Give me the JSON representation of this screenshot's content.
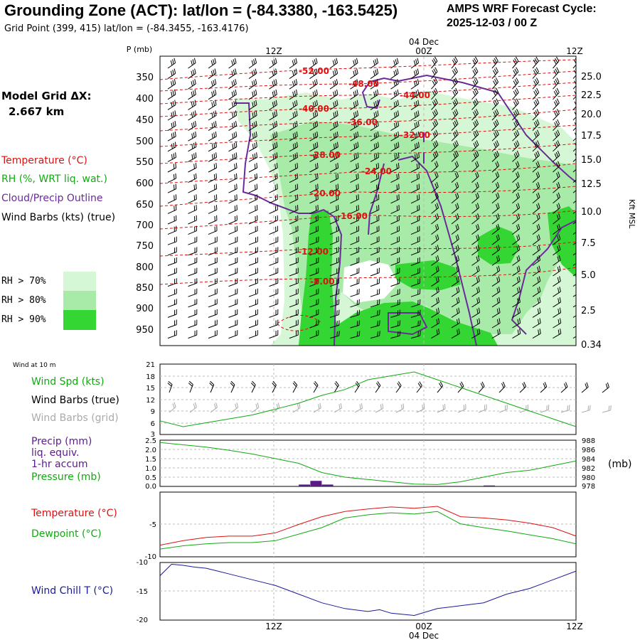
{
  "header": {
    "title": "Grounding Zone (ACT):  lat/lon = (-84.3380, -163.5425)",
    "grid_point": "Grid Point (399, 415) lat/lon = (-84.3455, -163.4176)",
    "cycle_line1": "AMPS WRF Forecast Cycle:",
    "cycle_line2": "2025-12-03 / 00  Z"
  },
  "time_axis": {
    "ticks": [
      "12Z",
      "00Z",
      "12Z"
    ],
    "date_label": "04 Dec"
  },
  "model_grid": {
    "line1": "Model Grid ΔX:",
    "line2": "2.667 km"
  },
  "colors": {
    "temperature": "#dd1111",
    "rh": "#11aa11",
    "cloud": "#6a2a9a",
    "wind": "#000000",
    "grid_wind": "#aaaaaa",
    "wind_chill": "#1a1a9a",
    "precip": "#5a1a8a",
    "rh70": "#d6f7d6",
    "rh80": "#a8eaa8",
    "rh90": "#33d633"
  },
  "legend": {
    "temperature": "Temperature (°C)",
    "rh": "RH (%, WRT liq. wat.)",
    "cloud": "Cloud/Precip Outline",
    "wind": "Wind Barbs (kts) (true)",
    "rh70": "RH > 70%",
    "rh80": "RH > 80%",
    "rh90": "RH > 90%"
  },
  "wind10": {
    "title": "Wind at 10 m",
    "spd": "Wind Spd (kts)",
    "barbs_true": "Wind Barbs (true)",
    "barbs_grid": "Wind Barbs (grid)"
  },
  "precip_panel": {
    "l1": "Precip (mm)",
    "l2": "liq. equiv.",
    "l3": "1-hr accum",
    "l4": "Pressure (mb)",
    "units": "(mb)"
  },
  "temp_panel": {
    "l1": "Temperature (°C)",
    "l2": "Dewpoint (°C)"
  },
  "chill_panel": {
    "l1": "Wind Chill T (°C)"
  },
  "chart_data": [
    {
      "type": "heatmap",
      "name": "cross-section",
      "y_left_label": "P (mb)",
      "y_left_ticks": [
        "350",
        "400",
        "450",
        "500",
        "550",
        "600",
        "650",
        "700",
        "750",
        "800",
        "850",
        "900",
        "950"
      ],
      "y_right_ticks": [
        "25.0",
        "22.5",
        "20.0",
        "17.5",
        "15.0",
        "12.5",
        "10.0",
        "7.5",
        "5.0",
        "2.5",
        "0.34"
      ],
      "y_right_label": "Kft MSL",
      "temp_labels": [
        "-52.00",
        "-48.00",
        "-44.00",
        "-40.00",
        "-36.00",
        "-32.00",
        "-28.00",
        "-24.00",
        "-20.00",
        "-16.00",
        "-12.00",
        "-8.00"
      ]
    },
    {
      "type": "line",
      "name": "wind10",
      "ylim": [
        3,
        21
      ],
      "y_ticks": [
        "21",
        "18",
        "15",
        "12",
        "9",
        "6",
        "3"
      ],
      "x_hours": [
        0,
        2,
        4,
        6,
        8,
        10,
        12,
        14,
        16,
        18,
        20,
        22,
        24,
        26,
        28,
        30,
        32,
        34,
        36
      ],
      "wind_speed_kts": [
        6.5,
        5,
        6,
        7,
        8,
        9.5,
        11,
        13,
        14.5,
        17,
        18,
        19,
        17,
        15,
        13,
        11,
        9,
        7,
        5
      ]
    },
    {
      "type": "bar",
      "name": "precip-pressure",
      "y_left_ticks": [
        "2.5",
        "2.0",
        "1.5",
        "1.0",
        "0.5",
        "0.0"
      ],
      "y_right_ticks": [
        "988",
        "986",
        "984",
        "982",
        "980",
        "978"
      ],
      "x_hours": [
        0,
        2,
        4,
        6,
        8,
        10,
        12,
        14,
        16,
        18,
        20,
        22,
        24,
        26,
        28,
        30,
        32,
        34,
        36
      ],
      "pressure_mb": [
        987.5,
        987,
        986.5,
        985.8,
        985,
        984,
        983,
        981,
        980,
        979.5,
        979,
        978.5,
        978.4,
        979,
        980,
        981,
        981.5,
        982.5,
        983.5
      ],
      "precip_bars": [
        {
          "hour": 12.5,
          "mm": 0.1
        },
        {
          "hour": 13.5,
          "mm": 0.3
        },
        {
          "hour": 14.5,
          "mm": 0.1
        },
        {
          "hour": 28.5,
          "mm": 0.05
        }
      ]
    },
    {
      "type": "line",
      "name": "temperature-dewpoint",
      "ylim": [
        -10,
        0
      ],
      "y_ticks": [
        "-5",
        "-10"
      ],
      "x_hours": [
        0,
        2,
        4,
        6,
        8,
        10,
        12,
        14,
        16,
        18,
        20,
        22,
        24,
        26,
        28,
        30,
        32,
        34,
        36
      ],
      "temperature_c": [
        -8.2,
        -7.5,
        -7,
        -6.8,
        -6.8,
        -6.3,
        -5,
        -3.8,
        -3,
        -2.6,
        -2.3,
        -2.5,
        -2.2,
        -3.8,
        -4,
        -4.3,
        -4.8,
        -5.5,
        -6.8
      ],
      "dewpoint_c": [
        -8.8,
        -8.3,
        -8,
        -7.8,
        -7.8,
        -7.5,
        -6.5,
        -5.5,
        -4,
        -3.5,
        -3.2,
        -3.4,
        -3,
        -4.9,
        -5.5,
        -6,
        -6.6,
        -7.2,
        -8
      ]
    },
    {
      "type": "line",
      "name": "wind-chill",
      "ylim": [
        -20,
        -10
      ],
      "y_ticks": [
        "-10",
        "-15",
        "-20"
      ],
      "x_hours": [
        0,
        1,
        2,
        3,
        4,
        5,
        6,
        8,
        10,
        12,
        14,
        16,
        18,
        19,
        20,
        22,
        24,
        26,
        28,
        30,
        32,
        34,
        36
      ],
      "wind_chill_c": [
        -12.3,
        -10.3,
        -10.5,
        -10.8,
        -11,
        -11.5,
        -12,
        -13,
        -14,
        -15.5,
        -17,
        -18,
        -18.5,
        -18.2,
        -18.8,
        -19.2,
        -18,
        -17.5,
        -17,
        -15.5,
        -14.5,
        -13,
        -11.5
      ]
    }
  ]
}
